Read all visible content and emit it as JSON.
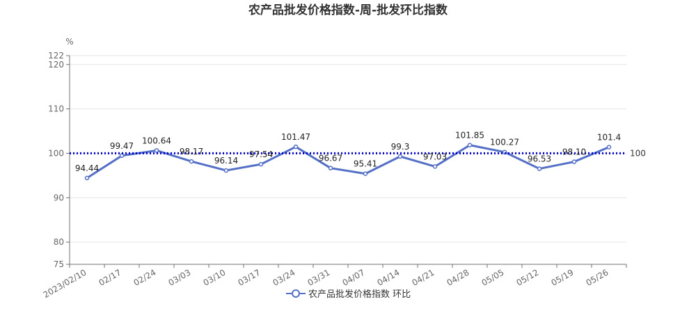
{
  "chart_data": {
    "type": "line",
    "title": "农产品批发价格指数-周-批发环比指数",
    "ylabel": "%",
    "ylim": [
      75,
      122
    ],
    "yticks": [
      75,
      80,
      90,
      100,
      110,
      120,
      122
    ],
    "grid": true,
    "legend_position": "bottom",
    "categories": [
      "2023/02/10",
      "02/17",
      "02/24",
      "03/03",
      "03/10",
      "03/17",
      "03/24",
      "03/31",
      "04/07",
      "04/14",
      "04/21",
      "04/28",
      "05/05",
      "05/12",
      "05/19",
      "05/26"
    ],
    "series": [
      {
        "name": "农产品批发价格指数 环比",
        "color": "#5470c6",
        "values": [
          94.44,
          99.47,
          100.64,
          98.17,
          96.14,
          97.54,
          101.47,
          96.67,
          95.41,
          99.3,
          97.03,
          101.85,
          100.27,
          96.53,
          98.1,
          101.4
        ],
        "labels": [
          "94.44",
          "99.47",
          "100.64",
          "98.17",
          "96.14",
          "97.54",
          "101.47",
          "96.67",
          "95.41",
          "99.3",
          "97.03",
          "101.85",
          "100.27",
          "96.53",
          "98.10",
          "101.4"
        ]
      }
    ],
    "reference_line": {
      "value": 100,
      "label": "100",
      "color": "#0000cc",
      "style": "dotted"
    }
  }
}
